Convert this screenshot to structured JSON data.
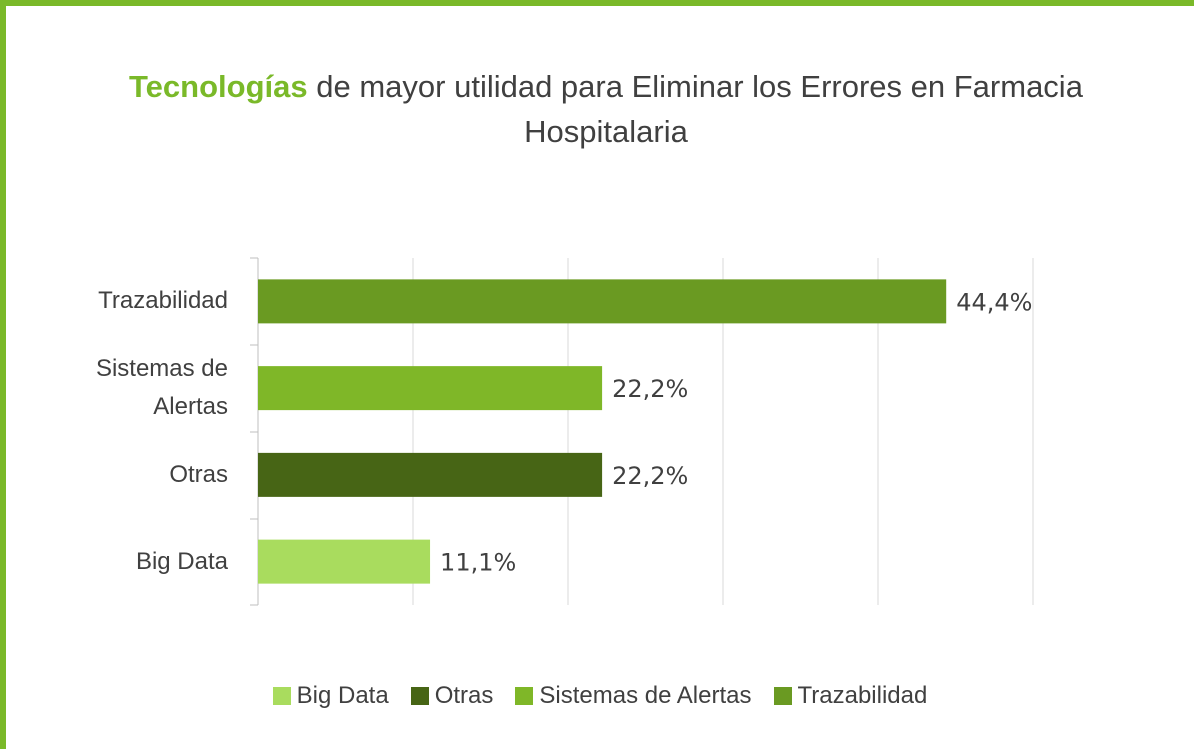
{
  "chart_data": {
    "type": "bar",
    "orientation": "horizontal",
    "title": [
      "Tecnologías",
      "de mayor utilidad para Eliminar los Errores en Farmacia Hospitalaria"
    ],
    "categories": [
      "Big Data",
      "Otras",
      "Sistemas de Alertas",
      "Trazabilidad"
    ],
    "values": [
      11.1,
      22.2,
      22.2,
      44.4
    ],
    "value_labels": [
      "11,1%",
      "22,2%",
      "22,2%",
      "44,4%"
    ],
    "colors": [
      "#a9dc5e",
      "#476515",
      "#7fb728",
      "#6a9a22"
    ],
    "xlim": [
      0,
      50
    ],
    "xticks": [
      0,
      10,
      20,
      30,
      40,
      50
    ],
    "grid": true,
    "legend": "bottom"
  }
}
